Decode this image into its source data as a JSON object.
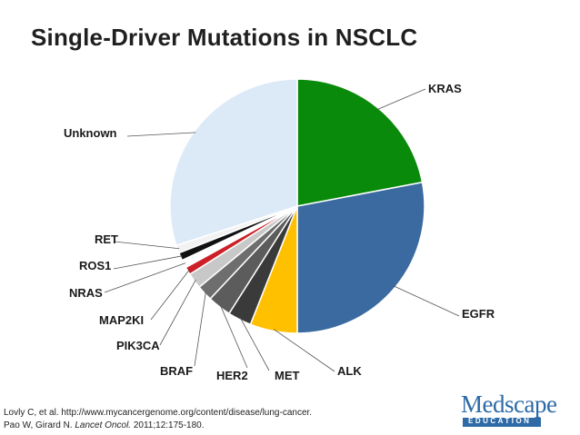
{
  "chart_data": {
    "type": "pie",
    "title": "Single-Driver Mutations in NSCLC",
    "categories": [
      "KRAS",
      "EGFR",
      "ALK",
      "MET",
      "HER2",
      "BRAF",
      "PIK3CA",
      "MAP2KI",
      "NRAS",
      "ROS1",
      "RET",
      "Unknown"
    ],
    "values": [
      22,
      28,
      6,
      3,
      3,
      2,
      2,
      1,
      1,
      1,
      1,
      30
    ],
    "units": "approximate % of slices",
    "colors": [
      "#0a8a0a",
      "#3a6aa0",
      "#ffc000",
      "#3a3a3a",
      "#5c5c5c",
      "#6e6e6e",
      "#c8c8c8",
      "#cc1f28",
      "#ffffff",
      "#111111",
      "#f2f2f2",
      "#dce9f7"
    ],
    "legend": "none"
  },
  "labels": {
    "KRAS": "KRAS",
    "EGFR": "EGFR",
    "ALK": "ALK",
    "MET": "MET",
    "HER2": "HER2",
    "BRAF": "BRAF",
    "PIK3CA": "PIK3CA",
    "MAP2KI": "MAP2KI",
    "NRAS": "NRAS",
    "ROS1": "ROS1",
    "RET": "RET",
    "Unknown": "Unknown"
  },
  "citation": {
    "line1": "Lovly C, et al. http://www.mycancergenome.org/content/disease/lung-cancer.",
    "line2_authors": "Pao W, Girard N. ",
    "line2_journal": "Lancet Oncol.",
    "line2_rest": " 2011;12:175-180."
  },
  "logo": {
    "name": "Medscape",
    "subtitle": "EDUCATION"
  }
}
